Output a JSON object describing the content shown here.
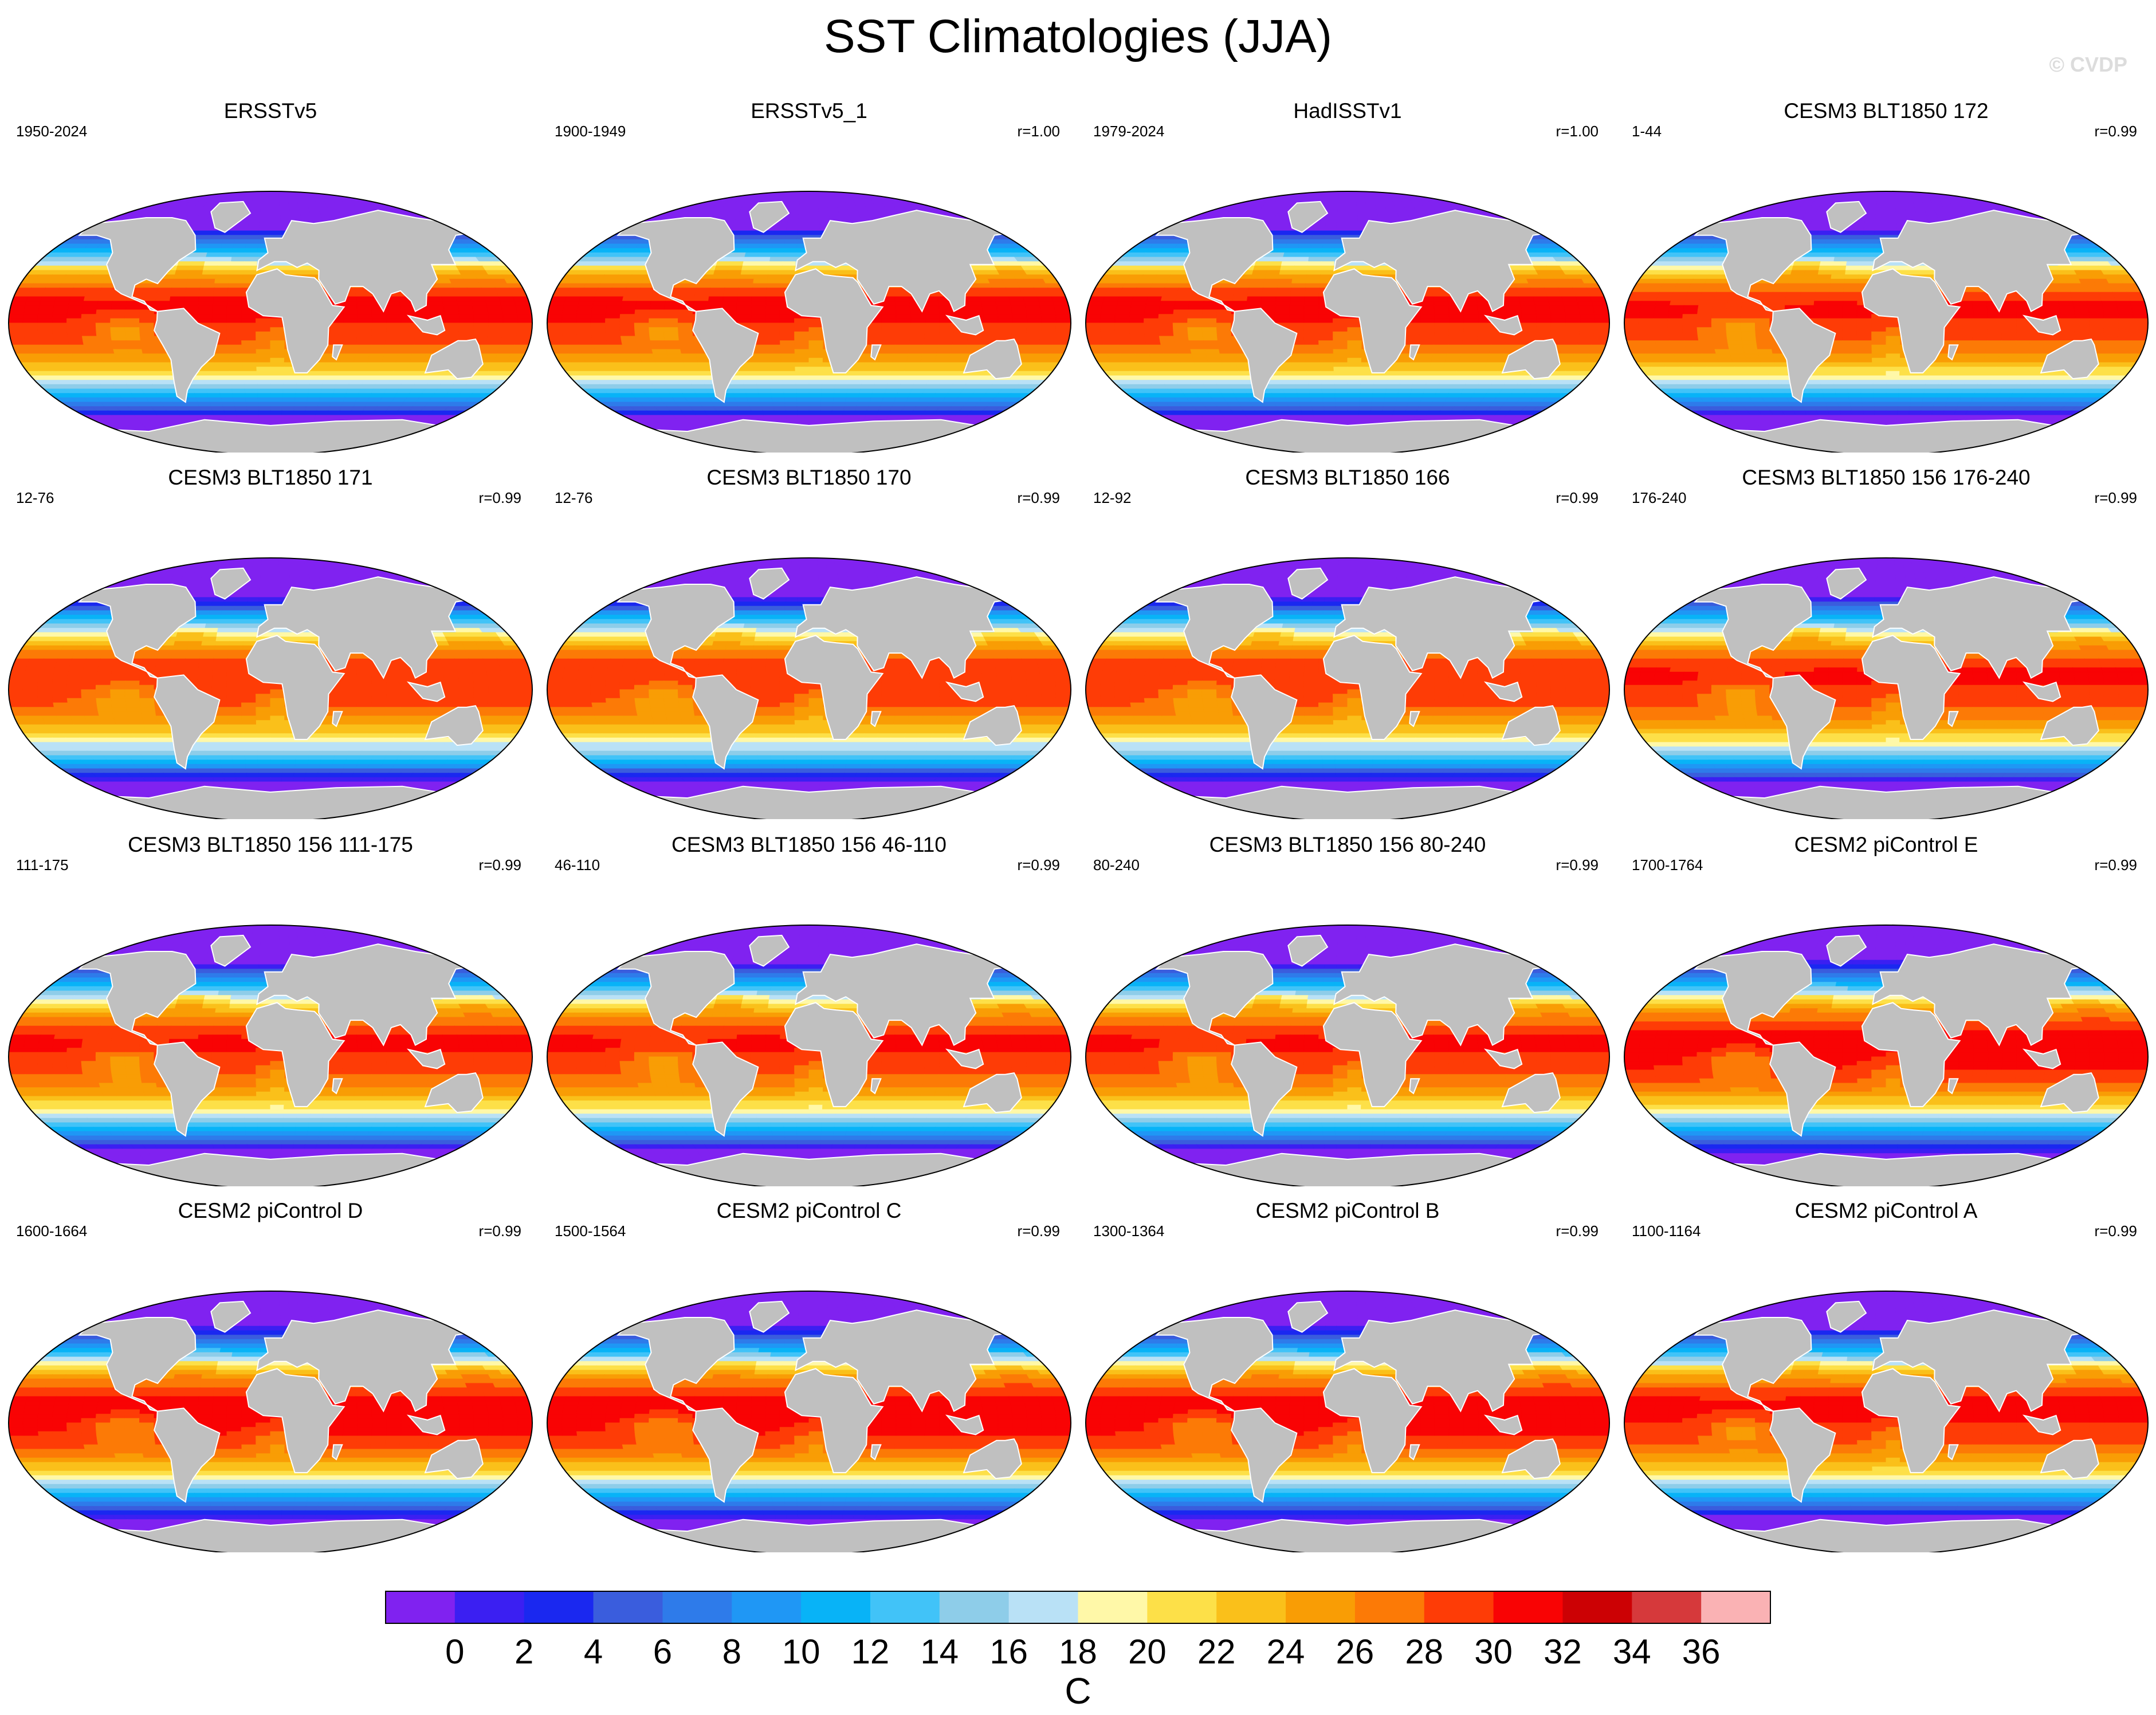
{
  "title": "SST Climatologies (JJA)",
  "copyright": "© CVDP",
  "colors": {
    "land": "#c0c0c0",
    "levels": [
      "#8022f0",
      "#3b1ff2",
      "#1a28f0",
      "#3a5ddd",
      "#2e7bea",
      "#1f97f5",
      "#08b3f7",
      "#41c3f8",
      "#8ecde9",
      "#b9e1f6",
      "#fff8a8",
      "#fde048",
      "#fac01a",
      "#f99d05",
      "#fc7a06",
      "#fe3c06",
      "#f90304",
      "#cc0104",
      "#d6393b",
      "#fab2b4"
    ]
  },
  "chart_data": {
    "type": "heatmap",
    "variable": "SST",
    "season": "JJA",
    "projection": "robinson",
    "units": "C",
    "colorbar": {
      "ticks": [
        "0",
        "2",
        "4",
        "6",
        "8",
        "10",
        "12",
        "14",
        "16",
        "18",
        "20",
        "22",
        "24",
        "26",
        "28",
        "30",
        "32",
        "34",
        "36"
      ],
      "levels": [
        0,
        2,
        4,
        6,
        8,
        10,
        12,
        14,
        16,
        18,
        20,
        22,
        24,
        26,
        28,
        30,
        32,
        34,
        36
      ],
      "label": "C"
    },
    "panels": [
      {
        "title": "ERSSTv5",
        "years": "1950-2024",
        "r": "",
        "max_sst": 30
      },
      {
        "title": "ERSSTv5_1",
        "years": "1900-1949",
        "r": "r=1.00",
        "max_sst": 30
      },
      {
        "title": "HadISSTv1",
        "years": "1979-2024",
        "r": "r=1.00",
        "max_sst": 30
      },
      {
        "title": "CESM3 BLT1850 172",
        "years": "1-44",
        "r": "r=0.99",
        "max_sst": 29.5
      },
      {
        "title": "CESM3 BLT1850 171",
        "years": "12-76",
        "r": "r=0.99",
        "max_sst": 29
      },
      {
        "title": "CESM3 BLT1850 170",
        "years": "12-76",
        "r": "r=0.99",
        "max_sst": 29
      },
      {
        "title": "CESM3 BLT1850 166",
        "years": "12-92",
        "r": "r=0.99",
        "max_sst": 29
      },
      {
        "title": "CESM3 BLT1850 156 176-240",
        "years": "176-240",
        "r": "r=0.99",
        "max_sst": 29.5
      },
      {
        "title": "CESM3 BLT1850 156 111-175",
        "years": "111-175",
        "r": "r=0.99",
        "max_sst": 29.5
      },
      {
        "title": "CESM3 BLT1850 156 46-110",
        "years": "46-110",
        "r": "r=0.99",
        "max_sst": 29.5
      },
      {
        "title": "CESM3 BLT1850 156 80-240",
        "years": "80-240",
        "r": "r=0.99",
        "max_sst": 29.5
      },
      {
        "title": "CESM2 piControl E",
        "years": "1700-1764",
        "r": "r=0.99",
        "max_sst": 30.5
      },
      {
        "title": "CESM2 piControl D",
        "years": "1600-1664",
        "r": "r=0.99",
        "max_sst": 30.5
      },
      {
        "title": "CESM2 piControl C",
        "years": "1500-1564",
        "r": "r=0.99",
        "max_sst": 30.5
      },
      {
        "title": "CESM2 piControl B",
        "years": "1300-1364",
        "r": "r=0.99",
        "max_sst": 30.5
      },
      {
        "title": "CESM2 piControl A",
        "years": "1100-1164",
        "r": "r=0.99",
        "max_sst": 30
      }
    ]
  }
}
